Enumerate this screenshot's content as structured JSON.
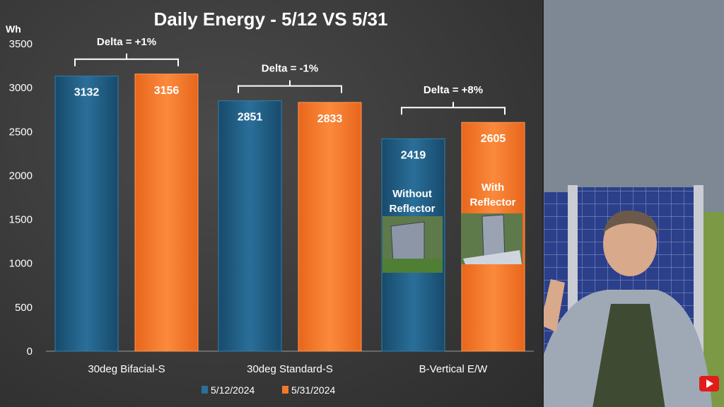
{
  "chart_data": {
    "type": "bar",
    "title": "Daily Energy - 5/12 VS 5/31",
    "ylabel": "Wh",
    "xlabel": "",
    "ylim": [
      0,
      3500
    ],
    "yticks": [
      0,
      500,
      1000,
      1500,
      2000,
      2500,
      3000,
      3500
    ],
    "categories": [
      "30deg Bifacial-S",
      "30deg Standard-S",
      "B-Vertical E/W"
    ],
    "series": [
      {
        "name": "5/12/2024",
        "color": "#1f5f86",
        "values": [
          3132,
          2851,
          2419
        ]
      },
      {
        "name": "5/31/2024",
        "color": "#f07a2c",
        "values": [
          3156,
          2833,
          2605
        ]
      }
    ],
    "deltas": [
      "Delta = +1%",
      "Delta = -1%",
      "Delta = +8%"
    ],
    "bar_annotations": {
      "without": "Without Reflector",
      "with": "With Reflector"
    },
    "legend_position": "bottom",
    "grid": false
  },
  "side_panel": {
    "icon": "person-video-thumbnail"
  }
}
